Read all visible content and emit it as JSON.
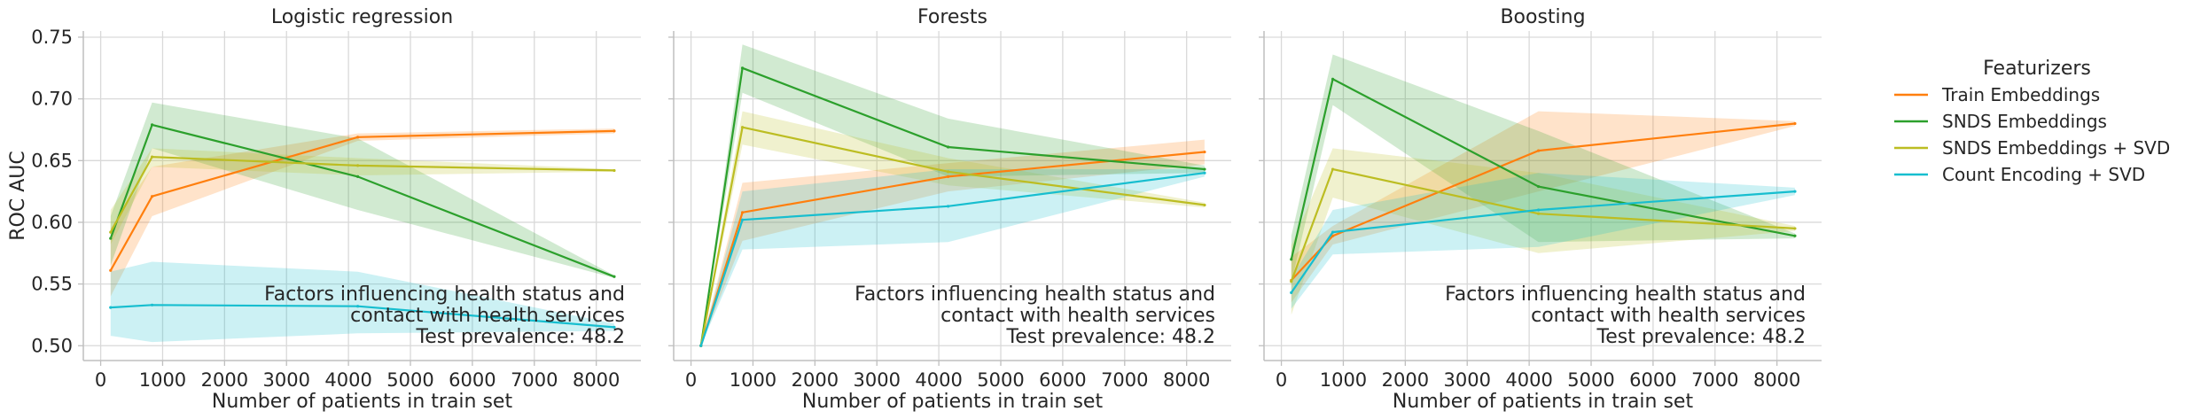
{
  "chart_data": [
    {
      "type": "line",
      "title": "Logistic regression",
      "xlabel": "Number of patients in train set",
      "ylabel": "ROC AUC",
      "annotation": [
        "Factors influencing health status and",
        "contact with health services",
        "Test prevalence: 48.2"
      ],
      "series": [
        {
          "name": "Train Embeddings",
          "x": [
            160,
            830,
            4150,
            8290
          ],
          "y": [
            0.561,
            0.621,
            0.669,
            0.674
          ],
          "lower": [
            0.54,
            0.605,
            0.666,
            0.672
          ],
          "upper": [
            0.595,
            0.645,
            0.672,
            0.676
          ]
        },
        {
          "name": "SNDS Embeddings",
          "x": [
            160,
            830,
            4150,
            8290
          ],
          "y": [
            0.587,
            0.679,
            0.637,
            0.556
          ],
          "lower": [
            0.565,
            0.66,
            0.61,
            0.555
          ],
          "upper": [
            0.605,
            0.697,
            0.668,
            0.557
          ]
        },
        {
          "name": "SNDS Embeddings + SVD",
          "x": [
            160,
            830,
            4150,
            8290
          ],
          "y": [
            0.592,
            0.653,
            0.646,
            0.642
          ],
          "lower": [
            0.582,
            0.645,
            0.638,
            0.641
          ],
          "upper": [
            0.61,
            0.66,
            0.652,
            0.643
          ]
        },
        {
          "name": "Count Encoding + SVD",
          "x": [
            160,
            830,
            4150,
            8290
          ],
          "y": [
            0.531,
            0.533,
            0.532,
            0.515
          ],
          "lower": [
            0.508,
            0.503,
            0.51,
            0.512
          ],
          "upper": [
            0.56,
            0.568,
            0.56,
            0.518
          ]
        }
      ]
    },
    {
      "type": "line",
      "title": "Forests",
      "xlabel": "Number of patients in train set",
      "ylabel": "",
      "annotation": [
        "Factors influencing health status and",
        "contact with health services",
        "Test prevalence: 48.2"
      ],
      "series": [
        {
          "name": "Train Embeddings",
          "x": [
            160,
            830,
            4150,
            8290
          ],
          "y": [
            0.5,
            0.608,
            0.637,
            0.657
          ],
          "lower": [
            0.5,
            0.585,
            0.625,
            0.647
          ],
          "upper": [
            0.5,
            0.632,
            0.648,
            0.667
          ]
        },
        {
          "name": "SNDS Embeddings",
          "x": [
            160,
            830,
            4150,
            8290
          ],
          "y": [
            0.5,
            0.725,
            0.661,
            0.643
          ],
          "lower": [
            0.5,
            0.705,
            0.637,
            0.64
          ],
          "upper": [
            0.5,
            0.744,
            0.684,
            0.646
          ]
        },
        {
          "name": "SNDS Embeddings + SVD",
          "x": [
            160,
            830,
            4150,
            8290
          ],
          "y": [
            0.5,
            0.677,
            0.641,
            0.614
          ],
          "lower": [
            0.5,
            0.663,
            0.63,
            0.612
          ],
          "upper": [
            0.5,
            0.69,
            0.652,
            0.616
          ]
        },
        {
          "name": "Count Encoding + SVD",
          "x": [
            160,
            830,
            4150,
            8290
          ],
          "y": [
            0.5,
            0.602,
            0.613,
            0.64
          ],
          "lower": [
            0.5,
            0.578,
            0.584,
            0.637
          ],
          "upper": [
            0.5,
            0.625,
            0.643,
            0.643
          ]
        }
      ]
    },
    {
      "type": "line",
      "title": "Boosting",
      "xlabel": "Number of patients in train set",
      "ylabel": "",
      "annotation": [
        "Factors influencing health status and",
        "contact with health services",
        "Test prevalence: 48.2"
      ],
      "series": [
        {
          "name": "Train Embeddings",
          "x": [
            160,
            830,
            4150,
            8290
          ],
          "y": [
            0.553,
            0.589,
            0.658,
            0.68
          ],
          "lower": [
            0.535,
            0.582,
            0.625,
            0.678
          ],
          "upper": [
            0.572,
            0.597,
            0.69,
            0.682
          ]
        },
        {
          "name": "SNDS Embeddings",
          "x": [
            160,
            830,
            4150,
            8290
          ],
          "y": [
            0.57,
            0.716,
            0.629,
            0.589
          ],
          "lower": [
            0.551,
            0.695,
            0.584,
            0.587
          ],
          "upper": [
            0.589,
            0.736,
            0.674,
            0.591
          ]
        },
        {
          "name": "SNDS Embeddings + SVD",
          "x": [
            160,
            830,
            4150,
            8290
          ],
          "y": [
            0.552,
            0.643,
            0.607,
            0.595
          ],
          "lower": [
            0.525,
            0.62,
            0.575,
            0.593
          ],
          "upper": [
            0.581,
            0.66,
            0.64,
            0.597
          ]
        },
        {
          "name": "Count Encoding + SVD",
          "x": [
            160,
            830,
            4150,
            8290
          ],
          "y": [
            0.543,
            0.592,
            0.61,
            0.625
          ],
          "lower": [
            0.53,
            0.574,
            0.58,
            0.622
          ],
          "upper": [
            0.555,
            0.61,
            0.64,
            0.628
          ]
        }
      ]
    }
  ],
  "axes": {
    "xlim": [
      -280,
      8720
    ],
    "ylim": [
      0.488,
      0.755
    ],
    "xticks": [
      0,
      1000,
      2000,
      3000,
      4000,
      5000,
      6000,
      7000,
      8000
    ],
    "yticks": [
      0.5,
      0.55,
      0.6,
      0.65,
      0.7,
      0.75
    ],
    "ytick_labels": [
      "0.50",
      "0.55",
      "0.60",
      "0.65",
      "0.70",
      "0.75"
    ],
    "grid": true,
    "shared_y": true
  },
  "legend": {
    "title": "Featurizers",
    "placement": "right",
    "entries": [
      {
        "label": "Train Embeddings",
        "color": "#ff7f0e"
      },
      {
        "label": "SNDS Embeddings",
        "color": "#2ca02c"
      },
      {
        "label": "SNDS Embeddings + SVD",
        "color": "#bcbd22"
      },
      {
        "label": "Count Encoding + SVD",
        "color": "#17becf"
      }
    ]
  },
  "colors": {
    "Train Embeddings": "#ff7f0e",
    "SNDS Embeddings": "#2ca02c",
    "SNDS Embeddings + SVD": "#bcbd22",
    "Count Encoding + SVD": "#17becf",
    "grid": "#d9d9d9",
    "spine": "#bfbfbf"
  }
}
